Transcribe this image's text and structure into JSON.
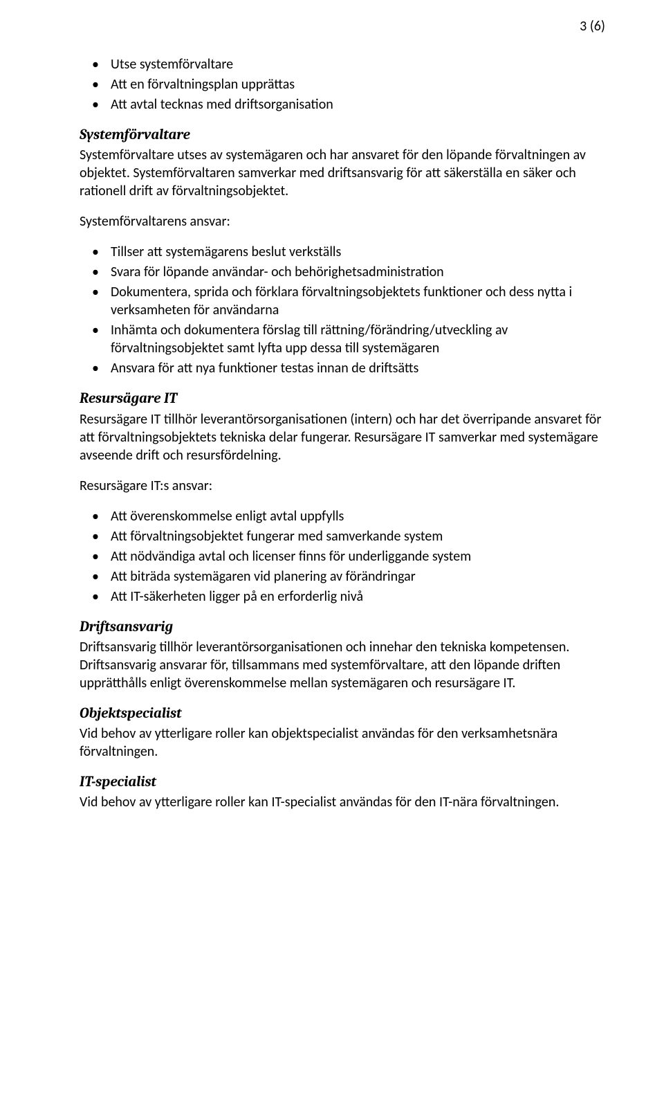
{
  "pageNumber": "3 (6)",
  "topBullets": [
    "Utse systemförvaltare",
    "Att en förvaltningsplan upprättas",
    "Att avtal tecknas med driftsorganisation"
  ],
  "section1": {
    "heading": "Systemförvaltare",
    "para1": "Systemförvaltare utses av systemägaren och har ansvaret för den löpande förvaltningen av objektet. Systemförvaltaren samverkar med driftsansvarig för att säkerställa en säker och rationell drift av förvaltningsobjektet.",
    "para2": "Systemförvaltarens ansvar:",
    "bullets": [
      "Tillser att systemägarens beslut verkställs",
      "Svara för löpande användar- och behörighetsadministration",
      "Dokumentera, sprida och förklara förvaltningsobjektets funktioner och dess nytta i verksamheten för användarna",
      "Inhämta och dokumentera förslag till rättning/förändring/utveckling av förvaltningsobjektet samt lyfta upp dessa till systemägaren",
      "Ansvara för att nya funktioner testas innan de driftsätts"
    ]
  },
  "section2": {
    "heading": "Resursägare IT",
    "para1": "Resursägare IT tillhör leverantörsorganisationen (intern) och har det överripande ansvaret för att förvaltningsobjektets tekniska delar fungerar. Resursägare IT samverkar med systemägare avseende drift och resursfördelning.",
    "para2": "Resursägare IT:s ansvar:",
    "bullets": [
      "Att överenskommelse enligt avtal uppfylls",
      "Att förvaltningsobjektet fungerar med samverkande system",
      "Att nödvändiga avtal och licenser finns för underliggande system",
      "Att biträda systemägaren vid planering av förändringar",
      "Att IT-säkerheten ligger på en erforderlig nivå"
    ]
  },
  "section3": {
    "heading": "Driftsansvarig",
    "para": "Driftsansvarig tillhör leverantörsorganisationen och innehar den tekniska kompetensen. Driftsansvarig ansvarar för, tillsammans med systemförvaltare, att den löpande driften upprätthålls enligt överenskommelse mellan systemägaren och resursägare IT."
  },
  "section4": {
    "heading": "Objektspecialist",
    "para": "Vid behov av ytterligare roller kan objektspecialist användas för den verksamhetsnära förvaltningen."
  },
  "section5": {
    "heading": "IT-specialist",
    "para": "Vid behov av ytterligare roller kan IT-specialist användas för den IT-nära förvaltningen."
  }
}
